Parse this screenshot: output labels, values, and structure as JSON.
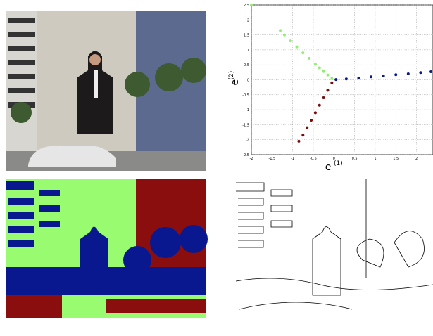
{
  "chart_data": {
    "type": "scatter",
    "xlabel": "e",
    "xlabel_sup": "(1)",
    "ylabel": "e",
    "ylabel_sup": "(2)",
    "xlim": [
      -2,
      2.4
    ],
    "ylim": [
      -2.5,
      2.5
    ],
    "xticks": [
      -2,
      -1.5,
      -1,
      -0.5,
      0,
      0.5,
      1,
      1.5,
      2
    ],
    "yticks": [
      -2.5,
      -2,
      -1.5,
      -1,
      -0.5,
      0,
      0.5,
      1,
      1.5,
      2,
      2.5
    ],
    "grid": true,
    "series": [
      {
        "color": "#90ee70",
        "x": [
          -2,
          -1.3,
          -1.2,
          -1.05,
          -0.9,
          -0.75,
          -0.6,
          -0.45,
          -0.35,
          -0.25,
          -0.15,
          -0.05
        ],
        "values": [
          2.5,
          1.65,
          1.5,
          1.3,
          1.1,
          0.9,
          0.72,
          0.52,
          0.4,
          0.28,
          0.16,
          0.05
        ]
      },
      {
        "color": "#0a1a8c",
        "x": [
          0.05,
          0.3,
          0.6,
          0.9,
          1.2,
          1.5,
          1.8,
          2.1,
          2.35
        ],
        "values": [
          0.01,
          0.03,
          0.06,
          0.1,
          0.13,
          0.17,
          0.2,
          0.24,
          0.27
        ]
      },
      {
        "color": "#7a0a0a",
        "x": [
          -0.05,
          -0.15,
          -0.25,
          -0.35,
          -0.45,
          -0.55,
          -0.65,
          -0.75,
          -0.85
        ],
        "values": [
          -0.1,
          -0.35,
          -0.6,
          -0.85,
          -1.1,
          -1.35,
          -1.6,
          -1.85,
          -2.05
        ]
      }
    ]
  }
}
